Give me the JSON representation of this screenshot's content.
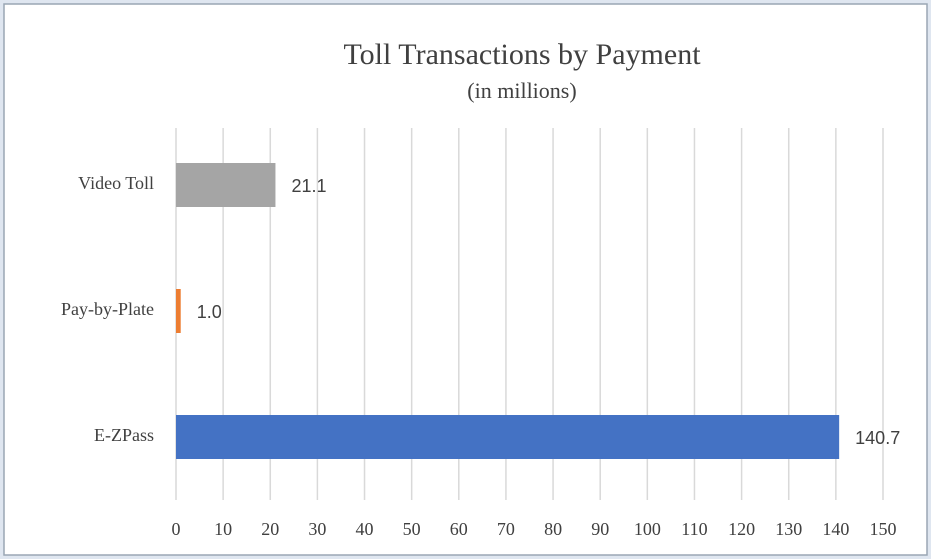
{
  "chart_data": {
    "type": "bar",
    "orientation": "horizontal",
    "title": "Toll Transactions  by Payment",
    "subtitle": "(in millions)",
    "categories": [
      "Video Toll",
      "Pay-by-Plate",
      "E-ZPass"
    ],
    "values": [
      21.1,
      1.0,
      140.7
    ],
    "value_labels": [
      "21.1",
      "1.0",
      "140.7"
    ],
    "colors": [
      "#a5a5a5",
      "#ed7d31",
      "#4472c4"
    ],
    "xlim": [
      0,
      150
    ],
    "xticks": [
      0,
      10,
      20,
      30,
      40,
      50,
      60,
      70,
      80,
      90,
      100,
      110,
      120,
      130,
      140,
      150
    ],
    "grid": true
  }
}
